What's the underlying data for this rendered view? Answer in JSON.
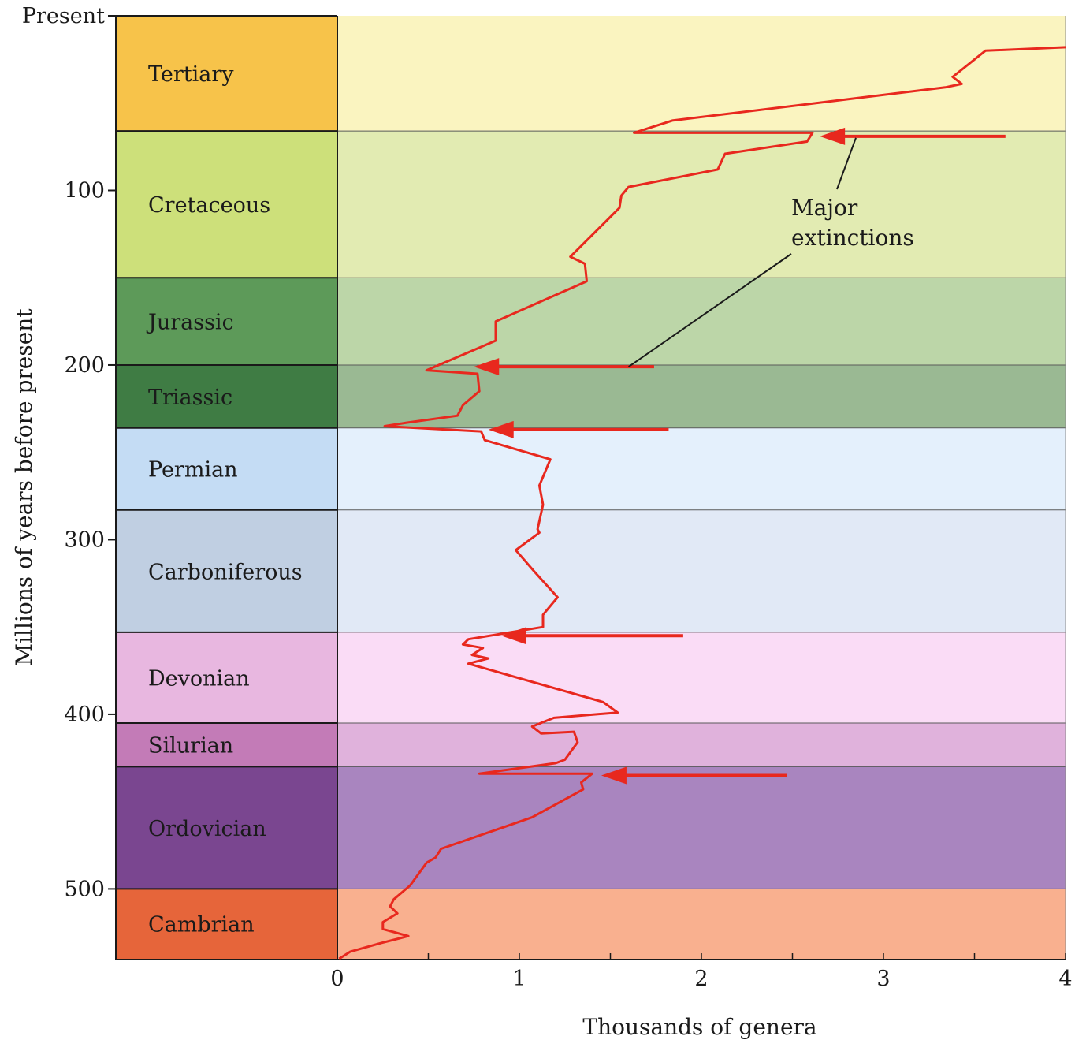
{
  "chart_data": {
    "type": "line",
    "title": "",
    "xlabel": "Thousands of genera",
    "ylabel": "Millions of years before present",
    "xlim": [
      0,
      4
    ],
    "ylim": [
      0,
      540
    ],
    "y_inverted": true,
    "x_ticks": [
      "0",
      "1",
      "2",
      "3",
      "4"
    ],
    "x_tick_values": [
      0,
      1,
      2,
      3,
      4
    ],
    "y_ticks": [
      "Present",
      "100",
      "200",
      "300",
      "400",
      "500"
    ],
    "y_tick_values": [
      0,
      100,
      200,
      300,
      400,
      500
    ],
    "line_color": "#e8281e",
    "periods": [
      {
        "name": "Tertiary",
        "start": 0,
        "end": 66,
        "color": "#f7c34a",
        "band": "#faf4c0"
      },
      {
        "name": "Cretaceous",
        "start": 66,
        "end": 150,
        "color": "#cde07a",
        "band": "#e2ebb2"
      },
      {
        "name": "Jurassic",
        "start": 150,
        "end": 200,
        "color": "#5d9a59",
        "band": "#bcd6a8"
      },
      {
        "name": "Triassic",
        "start": 200,
        "end": 236,
        "color": "#3f7c44",
        "band": "#9ab993"
      },
      {
        "name": "Permian",
        "start": 236,
        "end": 283,
        "color": "#c4dcf4",
        "band": "#e4f0fc"
      },
      {
        "name": "Carboniferous",
        "start": 283,
        "end": 353,
        "color": "#c0cfe2",
        "band": "#e1e9f6"
      },
      {
        "name": "Devonian",
        "start": 353,
        "end": 405,
        "color": "#e8b7e0",
        "band": "#fadcf6"
      },
      {
        "name": "Silurian",
        "start": 405,
        "end": 430,
        "color": "#c37bb7",
        "band": "#e0b2dc"
      },
      {
        "name": "Ordovician",
        "start": 430,
        "end": 500,
        "color": "#7a4690",
        "band": "#a985bf"
      },
      {
        "name": "Cambrian",
        "start": 500,
        "end": 540,
        "color": "#e6653a",
        "band": "#f9b08f"
      }
    ],
    "series": [
      {
        "points": [
          [
            4.0,
            18
          ],
          [
            3.56,
            20
          ],
          [
            3.38,
            35
          ],
          [
            3.43,
            39
          ],
          [
            3.34,
            41
          ],
          [
            1.84,
            60
          ],
          [
            1.63,
            67
          ],
          [
            2.61,
            67
          ],
          [
            2.58,
            72
          ],
          [
            2.13,
            79
          ],
          [
            2.09,
            88
          ],
          [
            1.6,
            98
          ],
          [
            1.56,
            103
          ],
          [
            1.55,
            110
          ],
          [
            1.28,
            138
          ],
          [
            1.36,
            142
          ],
          [
            1.37,
            152
          ],
          [
            0.87,
            175
          ],
          [
            0.87,
            186
          ],
          [
            0.49,
            203
          ],
          [
            0.77,
            205
          ],
          [
            0.78,
            215
          ],
          [
            0.69,
            223
          ],
          [
            0.66,
            229
          ],
          [
            0.38,
            233
          ],
          [
            0.26,
            235
          ],
          [
            0.79,
            238
          ],
          [
            0.81,
            243
          ],
          [
            1.17,
            254
          ],
          [
            1.11,
            269
          ],
          [
            1.13,
            280
          ],
          [
            1.1,
            294
          ],
          [
            1.11,
            296
          ],
          [
            0.98,
            306
          ],
          [
            1.08,
            318
          ],
          [
            1.21,
            333
          ],
          [
            1.13,
            343
          ],
          [
            1.13,
            350
          ],
          [
            0.72,
            357
          ],
          [
            0.69,
            360
          ],
          [
            0.8,
            362
          ],
          [
            0.74,
            366
          ],
          [
            0.83,
            368
          ],
          [
            0.72,
            371
          ],
          [
            1.46,
            393
          ],
          [
            1.54,
            399
          ],
          [
            1.19,
            402
          ],
          [
            1.07,
            407
          ],
          [
            1.12,
            411
          ],
          [
            1.3,
            410
          ],
          [
            1.32,
            416
          ],
          [
            1.25,
            426
          ],
          [
            1.2,
            428
          ],
          [
            0.78,
            434
          ],
          [
            1.4,
            434
          ],
          [
            1.34,
            439
          ],
          [
            1.35,
            443
          ],
          [
            1.07,
            459
          ],
          [
            0.57,
            477
          ],
          [
            0.54,
            482
          ],
          [
            0.49,
            485
          ],
          [
            0.4,
            498
          ],
          [
            0.31,
            506
          ],
          [
            0.29,
            510
          ],
          [
            0.33,
            514
          ],
          [
            0.25,
            519
          ],
          [
            0.25,
            523
          ],
          [
            0.39,
            527
          ],
          [
            0.24,
            531
          ],
          [
            0.07,
            536
          ],
          [
            0.01,
            540
          ]
        ]
      }
    ],
    "extinction_arrows": [
      {
        "y": 69,
        "x_from": 3.67,
        "x_to": 2.65
      },
      {
        "y": 201,
        "x_from": 1.74,
        "x_to": 0.75
      },
      {
        "y": 237,
        "x_from": 1.82,
        "x_to": 0.83
      },
      {
        "y": 355,
        "x_from": 1.9,
        "x_to": 0.9
      },
      {
        "y": 435,
        "x_from": 2.47,
        "x_to": 1.45
      }
    ],
    "annotation": {
      "lines": [
        "Major",
        "extinctions"
      ]
    }
  }
}
